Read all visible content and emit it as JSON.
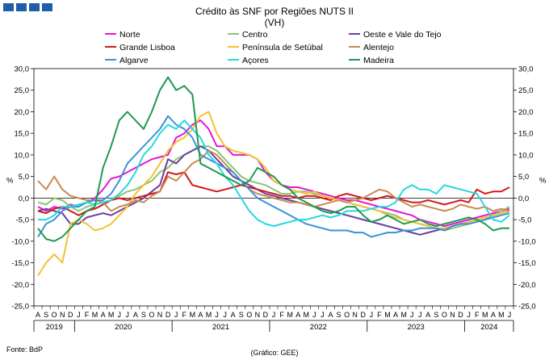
{
  "title": "Crédito às SNF por Regiões NUTS II",
  "subtitle": "(VH)",
  "source": "Fonte: BdP",
  "credit": "(Gráfico: GEE)",
  "chart_data": {
    "type": "line",
    "title": "Crédito às SNF por Regiões NUTS II",
    "subtitle": "(VH)",
    "ylabel_left": "%",
    "ylabel_right": "%",
    "ylim": [
      -25,
      30
    ],
    "yticks": [
      "-25,0",
      "-20,0",
      "-15,0",
      "-10,0",
      "-5,0",
      "0,0",
      "5,0",
      "10,0",
      "15,0",
      "20,0",
      "25,0",
      "30,0"
    ],
    "legend_placement": "top",
    "grid": false,
    "x_months": [
      "A",
      "S",
      "O",
      "N",
      "D",
      "J",
      "F",
      "M",
      "A",
      "M",
      "J",
      "J",
      "A",
      "S",
      "O",
      "N",
      "D",
      "J",
      "F",
      "M",
      "A",
      "M",
      "J",
      "J",
      "A",
      "S",
      "O",
      "N",
      "D",
      "J",
      "F",
      "M",
      "A",
      "M",
      "J",
      "J",
      "A",
      "S",
      "O",
      "N",
      "D",
      "J",
      "F",
      "M",
      "A",
      "M",
      "J",
      "J",
      "A",
      "S",
      "O",
      "N",
      "D",
      "J",
      "F",
      "M",
      "A",
      "M",
      "J"
    ],
    "years": [
      {
        "label": "2019",
        "start": 0,
        "end": 4
      },
      {
        "label": "2020",
        "start": 5,
        "end": 16
      },
      {
        "label": "2021",
        "start": 17,
        "end": 28
      },
      {
        "label": "2022",
        "start": 29,
        "end": 40
      },
      {
        "label": "2023",
        "start": 41,
        "end": 52
      },
      {
        "label": "2024",
        "start": 53,
        "end": 58
      }
    ],
    "series": [
      {
        "name": "Norte",
        "color": "#e815d6",
        "values": [
          -2,
          -3,
          -2,
          -2.5,
          -1.5,
          -2,
          -1,
          0,
          2,
          4.5,
          5,
          6,
          7,
          8,
          9,
          9.5,
          10,
          14,
          15,
          17,
          18,
          16,
          12,
          12,
          10,
          10,
          10,
          9,
          6,
          4,
          3,
          2.5,
          2.5,
          2,
          1.5,
          1,
          0.5,
          0,
          -0.5,
          -0.5,
          -1,
          -1.5,
          -2,
          -2.5,
          -3,
          -3.5,
          -4,
          -5,
          -5.5,
          -6,
          -6.5,
          -6,
          -5.5,
          -5,
          -4.5,
          -4,
          -3.5,
          -3,
          -2.5
        ]
      },
      {
        "name": "Centro",
        "color": "#8cc474",
        "values": [
          -1,
          -1.5,
          0,
          -0.5,
          -2,
          -3,
          -2,
          -1.5,
          -1,
          -0.5,
          0.5,
          1.5,
          2,
          3,
          4,
          6,
          7,
          9,
          10,
          11,
          12,
          12,
          11,
          9,
          7,
          5,
          4,
          3.5,
          3,
          2,
          1,
          1,
          1.5,
          1.5,
          1,
          0.5,
          0,
          -0.5,
          -1,
          -1.5,
          -2,
          -2.5,
          -3,
          -3.5,
          -4,
          -5,
          -5.5,
          -6,
          -6.5,
          -7,
          -7.5,
          -7,
          -6.5,
          -6,
          -5.5,
          -5,
          -4,
          -3,
          -2
        ]
      },
      {
        "name": "Oeste e Vale do Tejo",
        "color": "#6b3fa0",
        "values": [
          -3,
          -2.5,
          -3,
          -3.5,
          -6,
          -6,
          -4.5,
          -4,
          -3.5,
          -4,
          -3,
          -2,
          -1,
          0,
          1.5,
          3,
          9,
          8,
          10,
          11,
          12,
          11,
          9,
          7,
          5,
          4,
          3,
          2,
          1,
          0.5,
          0,
          -0.5,
          -1,
          -1.5,
          -2,
          -2.5,
          -3,
          -3.5,
          -4,
          -4.5,
          -5,
          -5.5,
          -6,
          -6.5,
          -7,
          -7.5,
          -8,
          -8.5,
          -8,
          -7.5,
          -7,
          -6.5,
          -6,
          -5.5,
          -5,
          -4.5,
          -4,
          -3.5,
          -3
        ]
      },
      {
        "name": "Grande Lisboa",
        "color": "#d11a1a",
        "values": [
          -3,
          -3.5,
          -2.5,
          -2,
          -3,
          -4,
          -3,
          -2.5,
          -1.5,
          -0.5,
          0,
          -0.5,
          0,
          0.5,
          1,
          1.5,
          6,
          5.5,
          6,
          3,
          2.5,
          2,
          1.5,
          2,
          2.5,
          3,
          2.5,
          2,
          1.5,
          1,
          0.5,
          0.5,
          0,
          0.5,
          0.5,
          0,
          -0.5,
          0.5,
          1,
          0.5,
          0,
          -0.5,
          0,
          0.5,
          0,
          -0.5,
          -1,
          -1,
          -0.5,
          -1,
          -1.5,
          -1,
          -0.5,
          -1,
          2,
          1,
          1.5,
          1.5,
          2.5
        ]
      },
      {
        "name": "Península de Setúbal",
        "color": "#f2c230",
        "values": [
          -18,
          -15,
          -13,
          -15,
          -6,
          -5,
          -6,
          -7.5,
          -7,
          -6,
          -4,
          -2,
          1,
          3,
          5,
          8,
          11,
          13,
          14,
          16,
          19,
          20,
          15,
          12,
          11,
          10.5,
          10,
          9,
          7,
          4,
          3,
          2,
          1.5,
          1,
          1.5,
          0.5,
          0,
          -0.5,
          -1,
          -1.5,
          -2,
          -2.5,
          -3,
          -4,
          -4.5,
          -5,
          -5.5,
          -6,
          -6.5,
          -7,
          -7,
          -6.5,
          -6,
          -5.5,
          -5,
          -4.5,
          -4,
          -3.5,
          -3
        ]
      },
      {
        "name": "Alentejo",
        "color": "#c98a55",
        "values": [
          4,
          2,
          5,
          2,
          0.5,
          0,
          -0.5,
          -0.5,
          -1,
          -3,
          -2,
          -1.5,
          -0.5,
          -1,
          0.5,
          1.5,
          5,
          4,
          6,
          8,
          9,
          11,
          10,
          8,
          6,
          4,
          2,
          1,
          0.5,
          0,
          -0.5,
          -1,
          -1,
          -1.5,
          -2,
          -1.5,
          -1,
          -0.5,
          -1,
          -0.5,
          0,
          1,
          2,
          1.5,
          0,
          -1,
          -2,
          -1.5,
          -2,
          -2.5,
          -3,
          -2.5,
          -1.5,
          -2,
          -2.5,
          -2,
          -3,
          -2.5,
          -3
        ]
      },
      {
        "name": "Algarve",
        "color": "#3a93d6",
        "values": [
          -9,
          -6,
          -5,
          -3,
          -2,
          -2,
          -1,
          -0.5,
          -0.5,
          1,
          4,
          8,
          10,
          12,
          14,
          16,
          19,
          17,
          16,
          14,
          10,
          9,
          8,
          7,
          6,
          4,
          2,
          0,
          -1,
          -2,
          -3,
          -4,
          -5,
          -6,
          -6.5,
          -7,
          -7.5,
          -7.5,
          -7.5,
          -8,
          -8,
          -9,
          -8.5,
          -8,
          -8,
          -7.5,
          -7.5,
          -7,
          -7,
          -7,
          -7.5,
          -6.5,
          -6,
          -6,
          -5.5,
          -5,
          -4.5,
          -4,
          -3.5
        ]
      },
      {
        "name": "Açores",
        "color": "#27d8e0",
        "values": [
          -5,
          -5,
          -4,
          -2,
          -2,
          -1.5,
          -1,
          -1.5,
          -1,
          -0.5,
          1,
          3,
          6,
          10,
          12,
          15,
          17,
          16,
          18,
          16,
          14,
          10,
          8,
          5,
          3,
          0,
          -3,
          -5,
          -6,
          -6.5,
          -6,
          -5.5,
          -5,
          -5,
          -4.5,
          -4,
          -4.5,
          -4,
          -3,
          -3,
          -3,
          -2.5,
          -2,
          -2,
          -1,
          2,
          3,
          2,
          2,
          1,
          3,
          2.5,
          2,
          1.5,
          1,
          -2,
          -5,
          -5.5,
          -4
        ]
      },
      {
        "name": "Madeira",
        "color": "#1e9a4f",
        "values": [
          -7,
          -9.5,
          -10,
          -9,
          -7,
          -5,
          -3,
          -2,
          7,
          12,
          18,
          20,
          18,
          16,
          20,
          25,
          28,
          25,
          26,
          24,
          8,
          7,
          6,
          5,
          4,
          3,
          4,
          7,
          6,
          5,
          3,
          2,
          0,
          -1,
          -2,
          -3,
          -3.5,
          -3,
          -2,
          -2,
          -4,
          -5.5,
          -5,
          -4,
          -5,
          -6,
          -5.5,
          -5,
          -6,
          -6.5,
          -6,
          -5.5,
          -5,
          -4.5,
          -5,
          -6,
          -7.5,
          -7,
          -7
        ]
      }
    ]
  }
}
